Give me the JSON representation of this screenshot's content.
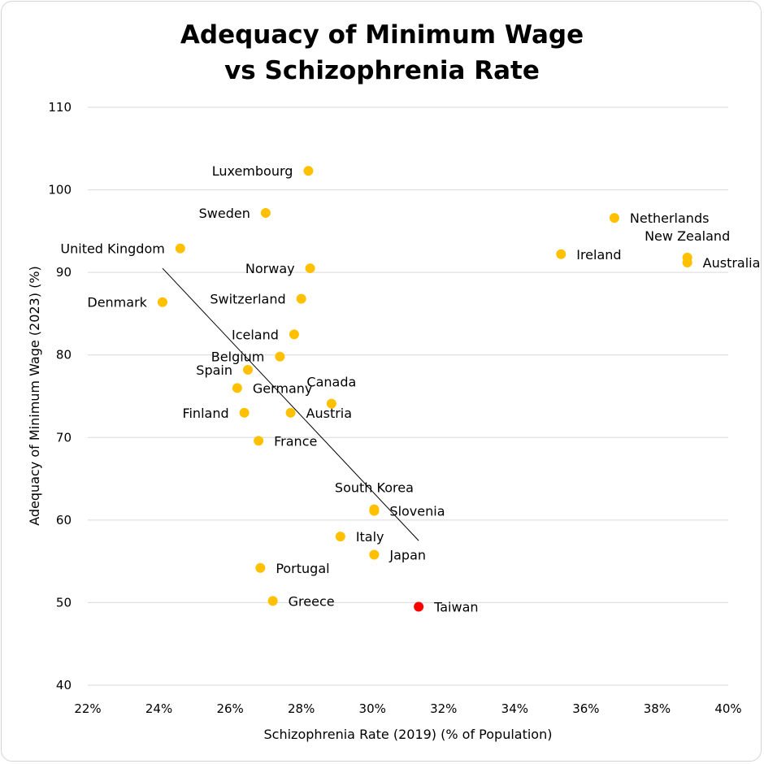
{
  "chart_data": {
    "type": "scatter",
    "title_lines": [
      "Adequacy of Minimum Wage",
      "vs Schizophrenia Rate"
    ],
    "xlabel": "Schizophrenia Rate (2019) (% of Population)",
    "ylabel": "Adequacy of Minimum Wage (2023) (%)",
    "xlim": [
      22,
      40
    ],
    "ylim": [
      40,
      110
    ],
    "xticks": [
      22,
      24,
      26,
      28,
      30,
      32,
      34,
      36,
      38,
      40
    ],
    "xtick_labels": [
      "22%",
      "24%",
      "26%",
      "28%",
      "30%",
      "32%",
      "34%",
      "36%",
      "38%",
      "40%"
    ],
    "yticks": [
      40,
      50,
      60,
      70,
      80,
      90,
      100,
      110
    ],
    "ytick_labels": [
      "40",
      "50",
      "60",
      "70",
      "80",
      "90",
      "100",
      "110"
    ],
    "grid": true,
    "point_color": "#FFC000",
    "highlight_color": "#FF0000",
    "trendline": {
      "x": [
        24.1,
        31.3
      ],
      "y": [
        90.5,
        57.5
      ],
      "color": "#000000"
    },
    "points": [
      {
        "name": "Luxembourg",
        "x": 28.2,
        "y": 102.3,
        "label_pos": "left"
      },
      {
        "name": "Sweden",
        "x": 27.0,
        "y": 97.2,
        "label_pos": "left"
      },
      {
        "name": "United Kingdom",
        "x": 24.6,
        "y": 92.9,
        "label_pos": "left"
      },
      {
        "name": "Norway",
        "x": 28.25,
        "y": 90.5,
        "label_pos": "left"
      },
      {
        "name": "Switzerland",
        "x": 28.0,
        "y": 86.8,
        "label_pos": "left"
      },
      {
        "name": "Denmark",
        "x": 24.1,
        "y": 86.4,
        "label_pos": "left"
      },
      {
        "name": "Iceland",
        "x": 27.8,
        "y": 82.5,
        "label_pos": "left"
      },
      {
        "name": "Belgium",
        "x": 27.4,
        "y": 79.8,
        "label_pos": "left"
      },
      {
        "name": "Spain",
        "x": 26.5,
        "y": 78.2,
        "label_pos": "left"
      },
      {
        "name": "Germany",
        "x": 26.2,
        "y": 76.0,
        "label_pos": "right"
      },
      {
        "name": "Canada",
        "x": 28.85,
        "y": 74.1,
        "label_pos": "above"
      },
      {
        "name": "Finland",
        "x": 26.4,
        "y": 73.0,
        "label_pos": "left"
      },
      {
        "name": "Austria",
        "x": 27.7,
        "y": 73.0,
        "label_pos": "right"
      },
      {
        "name": "France",
        "x": 26.8,
        "y": 69.6,
        "label_pos": "right"
      },
      {
        "name": "South Korea",
        "x": 30.05,
        "y": 61.3,
        "label_pos": "above"
      },
      {
        "name": "Slovenia",
        "x": 30.05,
        "y": 61.1,
        "label_pos": "right"
      },
      {
        "name": "Italy",
        "x": 29.1,
        "y": 58.0,
        "label_pos": "right"
      },
      {
        "name": "Japan",
        "x": 30.05,
        "y": 55.8,
        "label_pos": "right"
      },
      {
        "name": "Portugal",
        "x": 26.85,
        "y": 54.2,
        "label_pos": "right"
      },
      {
        "name": "Greece",
        "x": 27.2,
        "y": 50.2,
        "label_pos": "right"
      },
      {
        "name": "Taiwan",
        "x": 31.3,
        "y": 49.5,
        "label_pos": "right",
        "highlight": true
      },
      {
        "name": "Netherlands",
        "x": 36.8,
        "y": 96.6,
        "label_pos": "right"
      },
      {
        "name": "Ireland",
        "x": 35.3,
        "y": 92.2,
        "label_pos": "right"
      },
      {
        "name": "New Zealand",
        "x": 38.85,
        "y": 91.8,
        "label_pos": "above"
      },
      {
        "name": "Australia",
        "x": 38.85,
        "y": 91.2,
        "label_pos": "right"
      }
    ]
  }
}
